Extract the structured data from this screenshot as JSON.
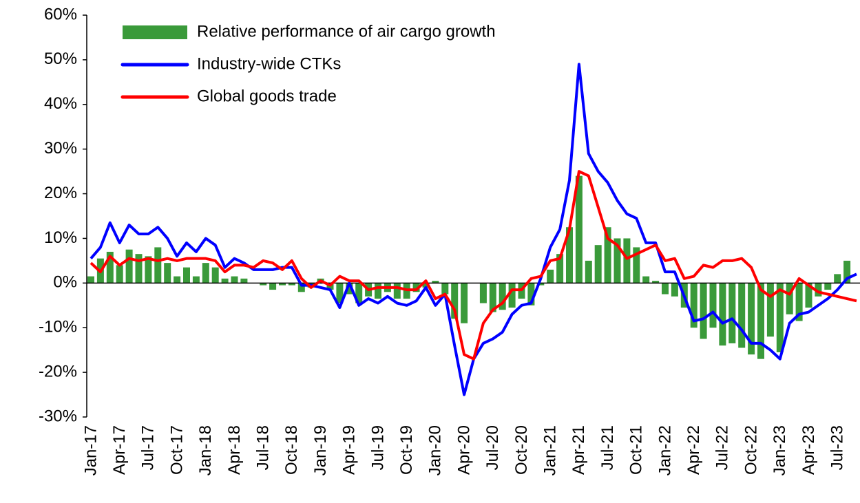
{
  "chart_data": {
    "type": "bar_line",
    "categories": [
      "Jan-17",
      null,
      null,
      "Apr-17",
      null,
      null,
      "Jul-17",
      null,
      null,
      "Oct-17",
      null,
      null,
      "Jan-18",
      null,
      null,
      "Apr-18",
      null,
      null,
      "Jul-18",
      null,
      null,
      "Oct-18",
      null,
      null,
      "Jan-19",
      null,
      null,
      "Apr-19",
      null,
      null,
      "Jul-19",
      null,
      null,
      "Oct-19",
      null,
      null,
      "Jan-20",
      null,
      null,
      "Apr-20",
      null,
      null,
      "Jul-20",
      null,
      null,
      "Oct-20",
      null,
      null,
      "Jan-21",
      null,
      null,
      "Apr-21",
      null,
      null,
      "Jul-21",
      null,
      null,
      "Oct-21",
      null,
      null,
      "Jan-22",
      null,
      null,
      "Apr-22",
      null,
      null,
      "Jul-22",
      null,
      null,
      "Oct-22",
      null,
      null,
      "Jan-23",
      null,
      null,
      "Apr-23",
      null,
      null,
      "Jul-23",
      null,
      null
    ],
    "series": [
      {
        "name": "Relative performance of air cargo growth",
        "kind": "bar",
        "color": "#3a9a3a",
        "values": [
          1.5,
          5.5,
          7,
          4,
          7.5,
          6.5,
          6,
          8,
          4.5,
          1.5,
          3.5,
          1.5,
          4.5,
          3.5,
          1,
          1.5,
          1,
          0,
          -0.5,
          -1.5,
          -0.5,
          -0.5,
          -2,
          -1,
          1,
          -1.5,
          -4.5,
          -2.5,
          -4.5,
          -3,
          -3.5,
          -2,
          -3.5,
          -3.5,
          -2,
          -1,
          0.5,
          -2.5,
          -8,
          -9,
          0,
          -4.5,
          -6.5,
          -6,
          -5.5,
          -3.5,
          -5,
          -0.5,
          3,
          6.5,
          12.5,
          24,
          5,
          8.5,
          12.5,
          10,
          10,
          8,
          1.5,
          0.5,
          -2.5,
          -3,
          -5.5,
          -10,
          -12.5,
          -10,
          -14,
          -13.5,
          -14.5,
          -16,
          -17,
          -12,
          -15.5,
          -7,
          -8.5,
          -5.5,
          -3,
          -1.5,
          2,
          5,
          null
        ]
      },
      {
        "name": "Industry-wide CTKs",
        "kind": "line",
        "color": "#0000ff",
        "values": [
          5.5,
          8,
          13.5,
          9,
          13,
          11,
          11,
          12.5,
          10,
          6,
          9,
          7,
          10,
          8.5,
          3.5,
          5.5,
          4.5,
          3,
          3,
          3,
          3.5,
          3.5,
          -0.5,
          -0.5,
          -1,
          -1.5,
          -5.5,
          0,
          -5,
          -3.5,
          -4.5,
          -3,
          -4.5,
          -5,
          -4,
          -1,
          -5,
          -2.5,
          -14,
          -25,
          -17,
          -13.5,
          -12.5,
          -11,
          -7,
          -5,
          -4.5,
          1,
          8,
          12,
          23,
          49,
          29,
          25,
          22.5,
          18.5,
          15.5,
          14.5,
          9,
          9,
          2.5,
          2.5,
          -3,
          -8.5,
          -8,
          -6.5,
          -9,
          -8,
          -10.5,
          -13.5,
          -13.5,
          -15,
          -17,
          -9,
          -7,
          -6.5,
          -5,
          -3.5,
          -1.5,
          1,
          2
        ]
      },
      {
        "name": "Global goods trade",
        "kind": "line",
        "color": "#ff0000",
        "values": [
          4.5,
          2.5,
          6,
          4,
          5.5,
          5,
          5.5,
          5,
          5.5,
          5,
          5.5,
          5.5,
          5.5,
          5,
          2.5,
          4,
          4,
          3.5,
          5,
          4.5,
          3,
          5,
          1,
          -1,
          0.5,
          -0.5,
          1.5,
          0.5,
          0.5,
          -1.5,
          -1,
          -1,
          -1,
          -1.5,
          -1.5,
          0.5,
          -3.5,
          -2.5,
          -6,
          -16,
          -17,
          -9,
          -6,
          -4.5,
          -1.5,
          -1.5,
          1,
          1.5,
          5,
          5.5,
          12,
          25,
          24,
          17,
          10,
          8.5,
          5.5,
          6.5,
          7.5,
          8.5,
          5,
          5.5,
          1,
          1.5,
          4,
          3.5,
          5,
          5,
          5.5,
          3.5,
          -1.5,
          -3,
          -1.5,
          -2.5,
          1,
          -0.5,
          -2,
          -2.5,
          -3,
          -3.5,
          -4
        ]
      }
    ],
    "ylim": [
      -30,
      60
    ],
    "yticks": [
      {
        "value": -30,
        "label": "-30%"
      },
      {
        "value": -20,
        "label": "-20%"
      },
      {
        "value": -10,
        "label": "-10%"
      },
      {
        "value": 0,
        "label": "0%"
      },
      {
        "value": 10,
        "label": "10%"
      },
      {
        "value": 20,
        "label": "20%"
      },
      {
        "value": 30,
        "label": "30%"
      },
      {
        "value": 40,
        "label": "40%"
      },
      {
        "value": 50,
        "label": "50%"
      },
      {
        "value": 60,
        "label": "60%"
      }
    ],
    "legend": "top-left"
  }
}
